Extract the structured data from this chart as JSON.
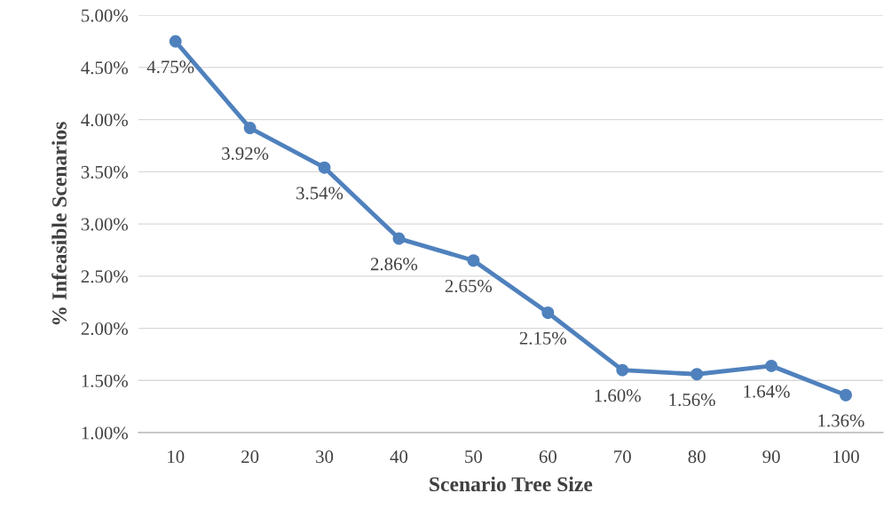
{
  "chart_data": {
    "type": "line",
    "xlabel": "Scenario Tree Size",
    "ylabel": "% Infeasible Scenarios",
    "categories": [
      "10",
      "20",
      "30",
      "40",
      "50",
      "60",
      "70",
      "80",
      "90",
      "100"
    ],
    "series": [
      {
        "color": "#4f81bd",
        "values": [
          4.75,
          3.92,
          3.54,
          2.86,
          2.65,
          2.15,
          1.6,
          1.56,
          1.64,
          1.36
        ],
        "value_labels": [
          "4.75%",
          "3.92%",
          "3.54%",
          "2.86%",
          "2.65%",
          "2.15%",
          "1.60%",
          "1.56%",
          "1.64%",
          "1.36%"
        ]
      }
    ],
    "ylim": [
      1,
      5
    ],
    "yticks": [
      {
        "value": 1,
        "label": "1.00%"
      },
      {
        "value": 1.5,
        "label": "1.50%"
      },
      {
        "value": 2,
        "label": "2.00%"
      },
      {
        "value": 2.5,
        "label": "2.50%"
      },
      {
        "value": 3,
        "label": "3.00%"
      },
      {
        "value": 3.5,
        "label": "3.50%"
      },
      {
        "value": 4,
        "label": "4.00%"
      },
      {
        "value": 4.5,
        "label": "4.50%"
      },
      {
        "value": 5,
        "label": "5.00%"
      }
    ],
    "grid": "y",
    "marker": "circle",
    "line_style": "solid",
    "legend": false
  }
}
